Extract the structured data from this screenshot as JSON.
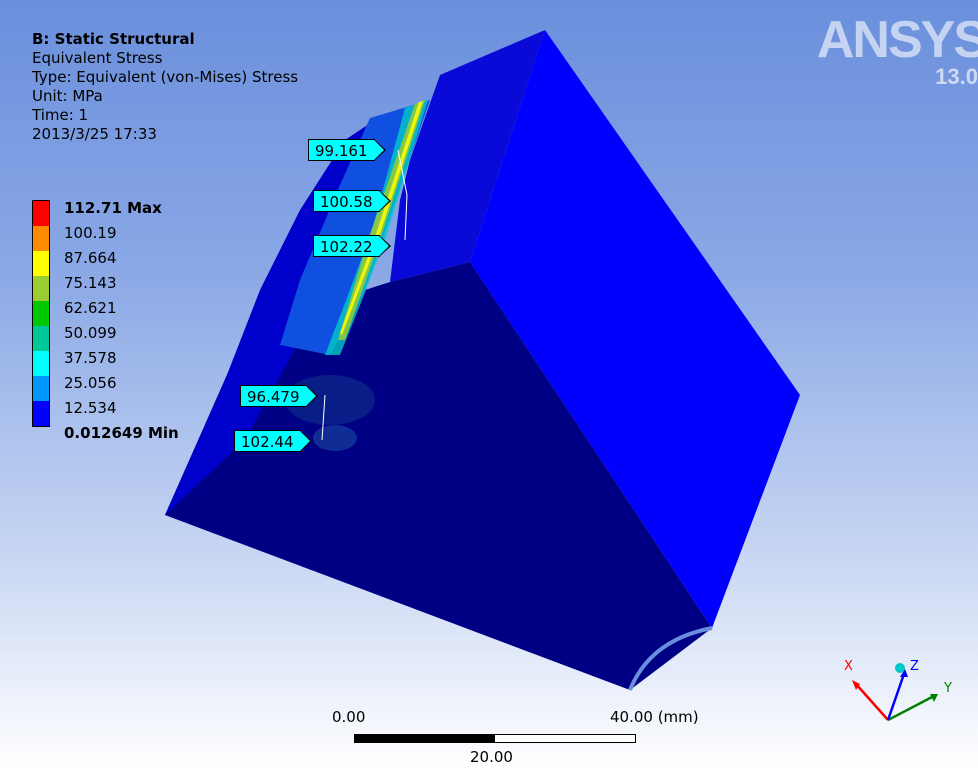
{
  "header": {
    "title": "B: Static Structural",
    "result_name": "Equivalent Stress",
    "type": "Type: Equivalent (von-Mises) Stress",
    "unit": "Unit: MPa",
    "time": "Time: 1",
    "timestamp": "2013/3/25 17:33"
  },
  "logo": {
    "brand": "ANSYS",
    "version": "13.0"
  },
  "legend": {
    "colors": [
      "#ff0000",
      "#ff8c00",
      "#ffff00",
      "#9acd32",
      "#00c800",
      "#00c896",
      "#00ffff",
      "#0096ff",
      "#0000ff"
    ],
    "labels": [
      "112.71 Max",
      "100.19",
      "87.664",
      "75.143",
      "62.621",
      "50.099",
      "37.578",
      "25.056",
      "12.534",
      "0.012649 Min"
    ]
  },
  "probes": [
    "99.161",
    "100.58",
    "102.22",
    "96.479",
    "102.44"
  ],
  "scale_bar": {
    "start": "0.00",
    "end": "40.00 (mm)",
    "mid": "20.00"
  },
  "triad": {
    "x": "X",
    "y": "Y",
    "z": "Z"
  },
  "colors": {
    "model_face_light": "#0000ff",
    "model_face_dark": "#000080",
    "probe_fill": "#00ffff"
  }
}
